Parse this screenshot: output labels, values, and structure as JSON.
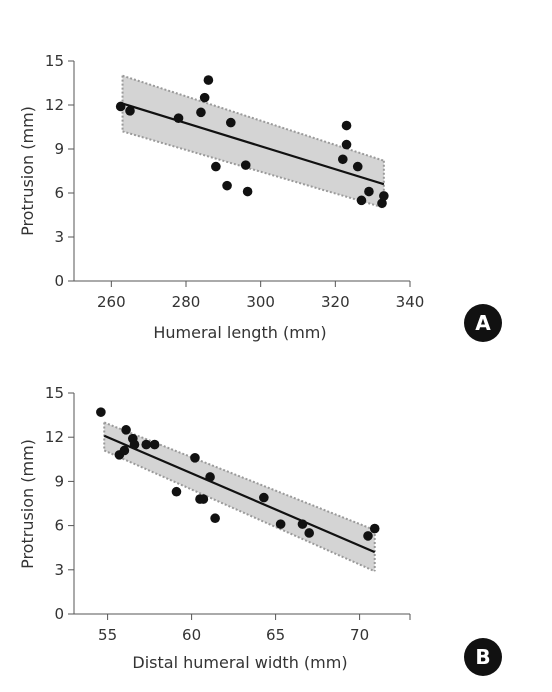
{
  "chart_data": [
    {
      "panel": "A",
      "type": "scatter",
      "xlabel": "Humeral length (mm)",
      "ylabel": "Protrusion (mm)",
      "xlim": [
        250,
        340
      ],
      "ylim": [
        0,
        15
      ],
      "xticks": [
        260,
        280,
        300,
        320,
        340
      ],
      "yticks": [
        0,
        3,
        6,
        9,
        12,
        15
      ],
      "points": [
        {
          "x": 262.5,
          "y": 11.9
        },
        {
          "x": 265,
          "y": 11.6
        },
        {
          "x": 278,
          "y": 11.1
        },
        {
          "x": 284,
          "y": 11.5
        },
        {
          "x": 285,
          "y": 12.5
        },
        {
          "x": 286,
          "y": 13.7
        },
        {
          "x": 288,
          "y": 7.8
        },
        {
          "x": 291,
          "y": 6.5
        },
        {
          "x": 292,
          "y": 10.8
        },
        {
          "x": 296,
          "y": 7.9
        },
        {
          "x": 296.5,
          "y": 6.1
        },
        {
          "x": 322,
          "y": 8.3
        },
        {
          "x": 323,
          "y": 10.6
        },
        {
          "x": 323,
          "y": 9.3
        },
        {
          "x": 326,
          "y": 7.8
        },
        {
          "x": 327,
          "y": 5.5
        },
        {
          "x": 329,
          "y": 6.1
        },
        {
          "x": 332.5,
          "y": 5.3
        },
        {
          "x": 333,
          "y": 5.8
        }
      ],
      "fit": {
        "x": [
          263,
          333
        ],
        "y": [
          12.1,
          6.6
        ]
      },
      "ci_upper": {
        "x": [
          263,
          333
        ],
        "y": [
          14.0,
          8.2
        ]
      },
      "ci_lower": {
        "x": [
          263,
          333
        ],
        "y": [
          10.2,
          5.0
        ]
      }
    },
    {
      "panel": "B",
      "type": "scatter",
      "xlabel": "Distal humeral width (mm)",
      "ylabel": "Protrusion (mm)",
      "xlim": [
        53,
        73
      ],
      "ylim": [
        0,
        15
      ],
      "xticks": [
        55,
        60,
        65,
        70
      ],
      "yticks": [
        0,
        3,
        6,
        9,
        12,
        15
      ],
      "points": [
        {
          "x": 54.6,
          "y": 13.7
        },
        {
          "x": 55.7,
          "y": 10.8
        },
        {
          "x": 56,
          "y": 11.1
        },
        {
          "x": 56.1,
          "y": 12.5
        },
        {
          "x": 56.5,
          "y": 11.9
        },
        {
          "x": 56.6,
          "y": 11.5
        },
        {
          "x": 57.3,
          "y": 11.5
        },
        {
          "x": 57.8,
          "y": 11.5
        },
        {
          "x": 59.1,
          "y": 8.3
        },
        {
          "x": 60.2,
          "y": 10.6
        },
        {
          "x": 60.5,
          "y": 7.8
        },
        {
          "x": 60.7,
          "y": 7.8
        },
        {
          "x": 61.1,
          "y": 9.3
        },
        {
          "x": 61.4,
          "y": 6.5
        },
        {
          "x": 64.3,
          "y": 7.9
        },
        {
          "x": 65.3,
          "y": 6.1
        },
        {
          "x": 66.6,
          "y": 6.1
        },
        {
          "x": 67,
          "y": 5.5
        },
        {
          "x": 70.5,
          "y": 5.3
        },
        {
          "x": 70.9,
          "y": 5.8
        }
      ],
      "fit": {
        "x": [
          54.8,
          70.9
        ],
        "y": [
          12.1,
          4.2
        ]
      },
      "ci_upper": {
        "x": [
          54.8,
          70.9
        ],
        "y": [
          13.0,
          5.7
        ]
      },
      "ci_lower": {
        "x": [
          54.8,
          70.9
        ],
        "y": [
          11.1,
          2.9
        ]
      }
    }
  ],
  "colors": {
    "points": "#111111",
    "fit_line": "#111111",
    "ci_fill": "#d4d4d4",
    "ci_border": "#9a9a9a",
    "axis": "#555555",
    "badge": "#111111"
  }
}
